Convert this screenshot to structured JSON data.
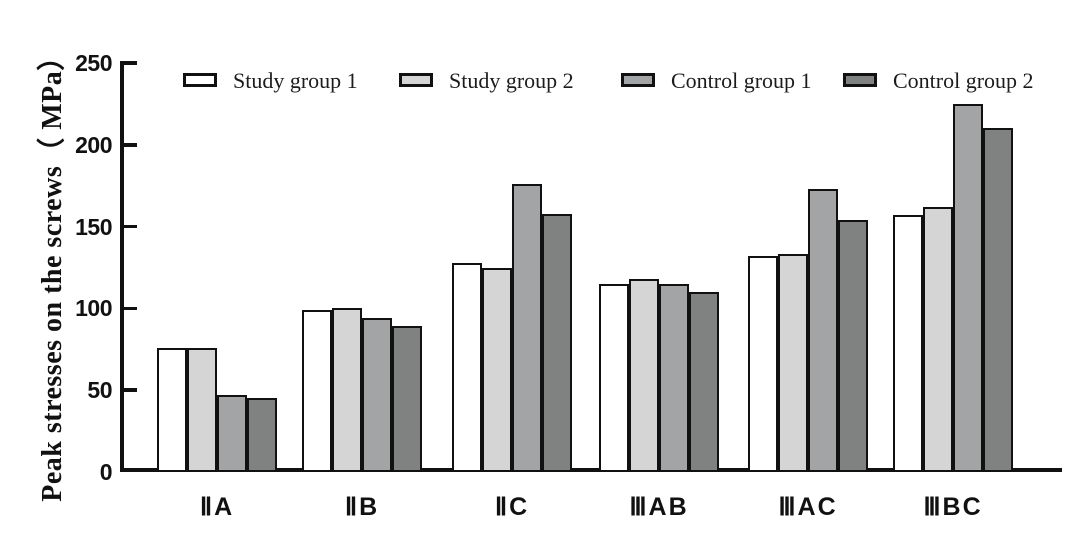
{
  "chart_data": {
    "type": "bar",
    "title": "",
    "xlabel": "",
    "ylabel": "Peak stresses on the screws（ MPa）",
    "ylim": [
      0,
      250
    ],
    "yticks": [
      0,
      50,
      100,
      150,
      200,
      250
    ],
    "grid": false,
    "legend_position": "top",
    "categories": [
      "ⅡA",
      "ⅡB",
      "ⅡC",
      "ⅢAB",
      "ⅢAC",
      "ⅢBC"
    ],
    "series": [
      {
        "name": "Study group 1",
        "color": "#ffffff",
        "values": [
          76,
          99,
          128,
          115,
          132,
          157
        ]
      },
      {
        "name": "Study group 2",
        "color": "#d4d5d4",
        "values": [
          76,
          100,
          125,
          118,
          133,
          162
        ]
      },
      {
        "name": "Control group 1",
        "color": "#a2a4a6",
        "values": [
          47,
          94,
          176,
          115,
          173,
          225
        ]
      },
      {
        "name": "Control group 2",
        "color": "#808281",
        "values": [
          45,
          89,
          158,
          110,
          154,
          210
        ]
      }
    ],
    "bar_border_color": "#111111",
    "axis_color": "#111111"
  }
}
